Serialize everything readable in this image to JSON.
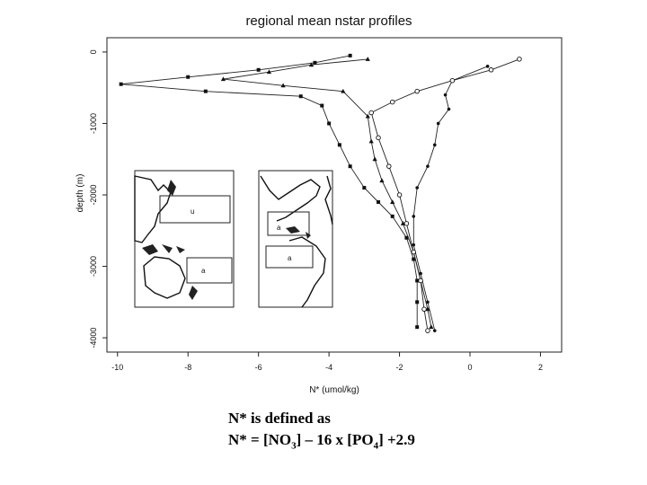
{
  "chart_data": {
    "type": "line",
    "title": "regional mean nstar profiles",
    "xlabel": "N* (umol/kg)",
    "ylabel": "depth (m)",
    "xlim": [
      -10.3,
      2.6
    ],
    "ylim": [
      -4200,
      200
    ],
    "x_ticks": [
      -10,
      -8,
      -6,
      -4,
      -2,
      0,
      2
    ],
    "y_ticks": [
      0,
      -1000,
      -2000,
      -3000,
      -4000
    ],
    "grid": false,
    "legend": "none",
    "series": [
      {
        "marker": "square",
        "x": [
          -3.4,
          -4.4,
          -6.0,
          -8.0,
          -9.9,
          -7.5,
          -4.8,
          -4.2,
          -4.0,
          -3.7,
          -3.4,
          -3.0,
          -2.6,
          -2.2,
          -1.8,
          -1.6,
          -1.5,
          -1.5,
          -1.5
        ],
        "y": [
          -50,
          -150,
          -250,
          -350,
          -450,
          -550,
          -620,
          -750,
          -1000,
          -1300,
          -1600,
          -1900,
          -2100,
          -2300,
          -2600,
          -2900,
          -3200,
          -3500,
          -3850
        ]
      },
      {
        "marker": "triangle",
        "x": [
          -2.9,
          -4.5,
          -5.7,
          -7.0,
          -5.3,
          -3.6,
          -2.9,
          -2.8,
          -2.7,
          -2.5,
          -2.2,
          -1.9,
          -1.6,
          -1.4,
          -1.2,
          -1.1
        ],
        "y": [
          -100,
          -180,
          -280,
          -380,
          -470,
          -550,
          -900,
          -1250,
          -1500,
          -1800,
          -2100,
          -2400,
          -2800,
          -3200,
          -3600,
          -3850
        ]
      },
      {
        "marker": "circle",
        "x": [
          0.5,
          -0.5,
          -0.7,
          -0.6,
          -0.9,
          -1.0,
          -1.2,
          -1.5,
          -1.6,
          -1.6,
          -1.4,
          -1.2,
          -1.0
        ],
        "y": [
          -200,
          -400,
          -600,
          -800,
          -1000,
          -1300,
          -1600,
          -1900,
          -2300,
          -2700,
          -3100,
          -3500,
          -3900
        ]
      },
      {
        "marker": "open",
        "x": [
          1.4,
          0.6,
          -0.5,
          -1.5,
          -2.2,
          -2.8,
          -2.6,
          -2.3,
          -2.0,
          -1.8,
          -1.6,
          -1.4,
          -1.3,
          -1.2
        ],
        "y": [
          -100,
          -250,
          -400,
          -550,
          -700,
          -850,
          -1200,
          -1600,
          -2000,
          -2400,
          -2800,
          -3200,
          -3600,
          -3900
        ]
      }
    ]
  },
  "inset": {
    "pacific_box_label": "u",
    "pacific_box2_label": "a",
    "atlantic_box_label": "a",
    "atlantic_box2_label": "a"
  },
  "caption": {
    "line1": "N* is defined as",
    "line2_prefix": "N* = [NO",
    "line2_sub1": "3",
    "line2_middle": "] – 16 x [PO",
    "line2_sub2": "4",
    "line2_suffix": "] +2.9"
  }
}
